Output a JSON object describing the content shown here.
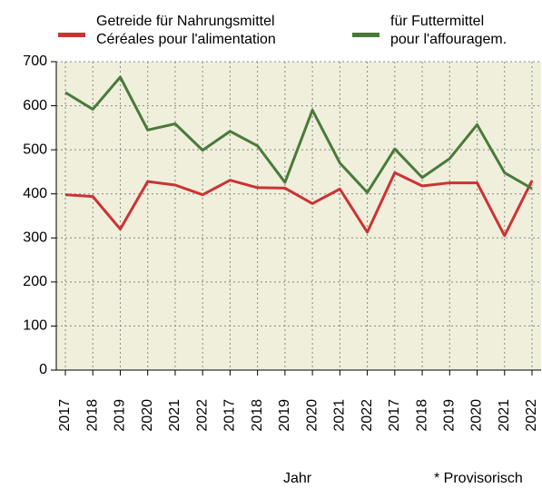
{
  "chart_data": {
    "type": "line",
    "categories": [
      "2017",
      "2018",
      "2019",
      "2020",
      "2021",
      "2022",
      "2017",
      "2018",
      "2019",
      "2020",
      "2021",
      "2022",
      "2017",
      "2018",
      "2019",
      "2020",
      "2021",
      "2022"
    ],
    "series": [
      {
        "name": "Getreide für Nahrungsmittel\nCéréales pour l'alimentation",
        "color": "#cc3333",
        "values": [
          398,
          394,
          320,
          428,
          420,
          398,
          431,
          414,
          413,
          378,
          411,
          313,
          448,
          418,
          425,
          425,
          305,
          430
        ]
      },
      {
        "name": "für Futtermittel\npour l'affouragem.",
        "color": "#4a7a3a",
        "values": [
          630,
          592,
          665,
          545,
          559,
          499,
          542,
          509,
          426,
          590,
          470,
          403,
          502,
          437,
          480,
          557,
          448,
          412
        ]
      }
    ],
    "ylim": [
      0,
      700
    ],
    "yticks": [
      0,
      100,
      200,
      300,
      400,
      500,
      600,
      700
    ],
    "grid": true,
    "xlabel": "Jahr",
    "note": "* Provisorisch"
  }
}
